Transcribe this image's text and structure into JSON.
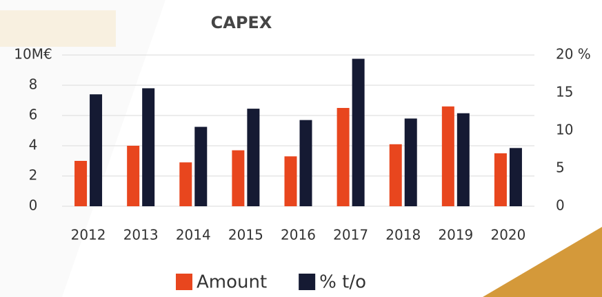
{
  "chart_data": {
    "type": "bar",
    "title": "CAPEX",
    "categories": [
      "2012",
      "2013",
      "2014",
      "2015",
      "2016",
      "2017",
      "2018",
      "2019",
      "2020"
    ],
    "series": [
      {
        "name": "Amount",
        "color": "#e8461e",
        "values": [
          3.0,
          4.0,
          2.9,
          3.7,
          3.3,
          6.5,
          4.1,
          6.6,
          3.5
        ]
      },
      {
        "name": "% t/o",
        "color": "#151a33",
        "axis": "y2",
        "values": [
          14.8,
          15.6,
          10.5,
          12.9,
          11.4,
          19.5,
          11.6,
          12.3,
          7.7
        ]
      }
    ],
    "ylim": [
      0,
      10
    ],
    "yticks": [
      0,
      2,
      4,
      6,
      8,
      {
        "value": 10,
        "label": "10M€"
      }
    ],
    "y2lim": [
      0,
      20
    ],
    "y2ticks": [
      0,
      5,
      10,
      15,
      {
        "value": 20,
        "label": "20 %"
      }
    ],
    "grid": true,
    "legend": "bottom"
  }
}
